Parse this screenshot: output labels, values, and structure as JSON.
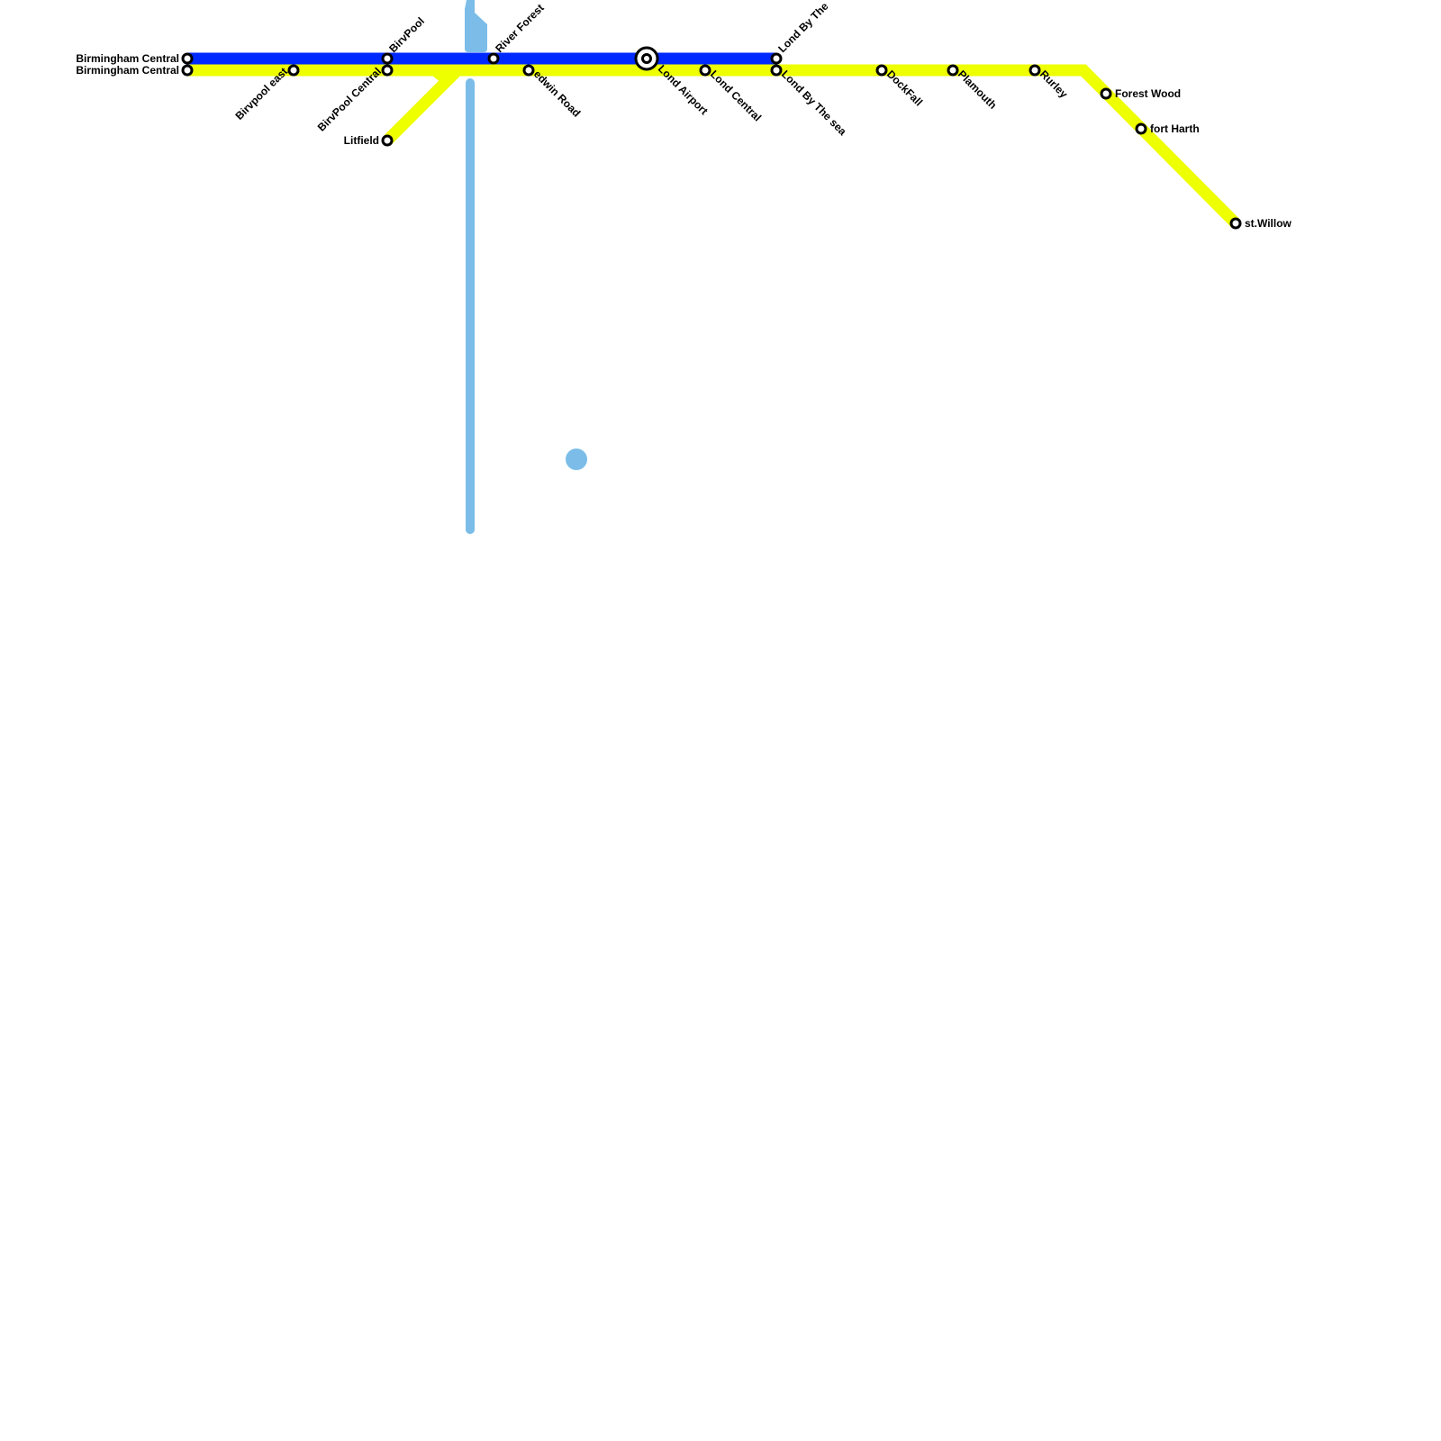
{
  "colors": {
    "blue_line": "#0029ff",
    "yellow_line": "#eeff00",
    "water": "#7bbde8",
    "station_stroke": "#000000"
  },
  "stations": [
    {
      "name": "Birmingham Central",
      "line": "blue"
    },
    {
      "name": "Birmingham Central",
      "line": "yellow"
    },
    {
      "name": "Birvpool east",
      "line": "yellow"
    },
    {
      "name": "BirvPool",
      "line": "blue"
    },
    {
      "name": "BirvPool Central",
      "line": "yellow"
    },
    {
      "name": "Litfield",
      "line": "yellow"
    },
    {
      "name": "River Forest",
      "line": "blue"
    },
    {
      "name": "edwin Road",
      "line": "yellow"
    },
    {
      "name": "Lond Airport",
      "line": "blue",
      "interchange": true
    },
    {
      "name": "Lond Central",
      "line": "yellow"
    },
    {
      "name": "Lond By The",
      "line": "blue"
    },
    {
      "name": "Lond By The sea",
      "line": "yellow"
    },
    {
      "name": "DockFall",
      "line": "yellow"
    },
    {
      "name": "Plamouth",
      "line": "yellow"
    },
    {
      "name": "Rurley",
      "line": "yellow"
    },
    {
      "name": "Forest Wood",
      "line": "yellow"
    },
    {
      "name": "fort Harth",
      "line": "yellow"
    },
    {
      "name": "st.Willow",
      "line": "yellow"
    }
  ]
}
